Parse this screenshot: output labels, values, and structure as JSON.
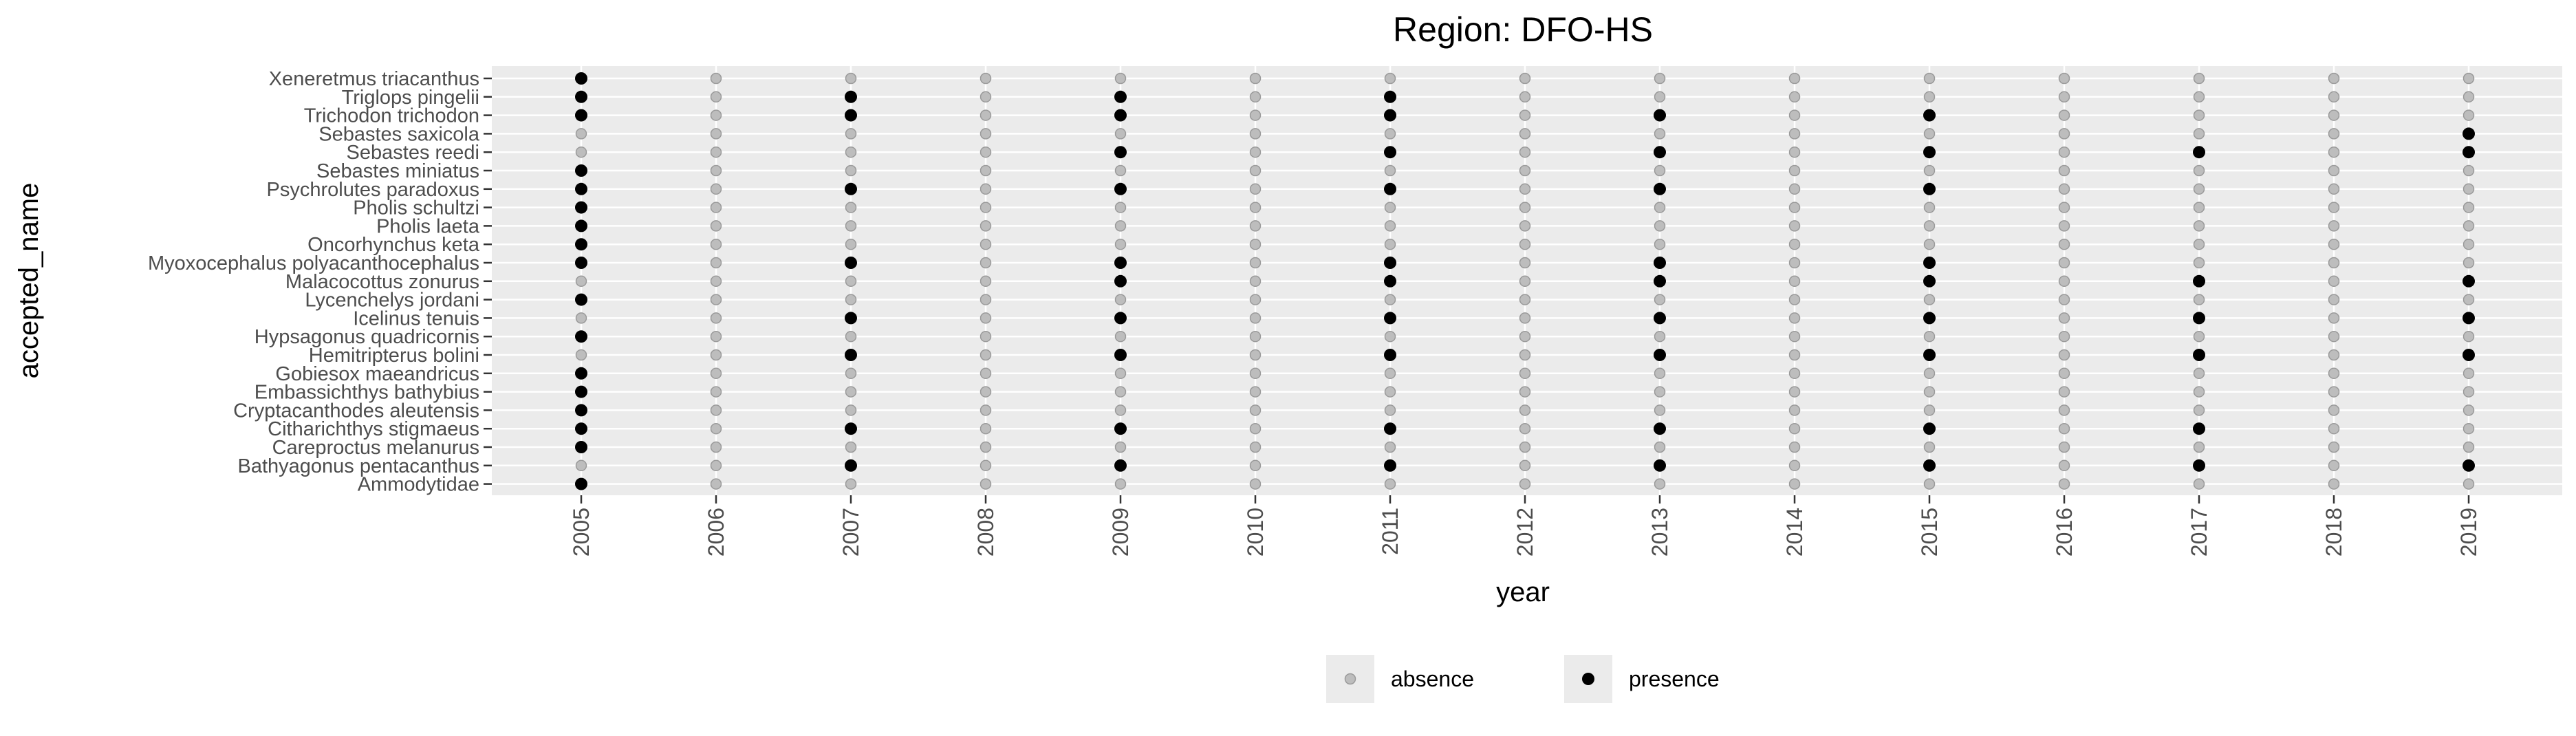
{
  "chart_data": {
    "type": "scatter",
    "title": "Region: DFO-HS",
    "xlabel": "year",
    "ylabel": "accepted_name",
    "x": [
      "2005",
      "2006",
      "2007",
      "2008",
      "2009",
      "2010",
      "2011",
      "2012",
      "2013",
      "2014",
      "2015",
      "2016",
      "2017",
      "2018",
      "2019"
    ],
    "categories": [
      "Xeneretmus triacanthus",
      "Triglops pingelii",
      "Trichodon trichodon",
      "Sebastes saxicola",
      "Sebastes reedi",
      "Sebastes miniatus",
      "Psychrolutes paradoxus",
      "Pholis schultzi",
      "Pholis laeta",
      "Oncorhynchus keta",
      "Myoxocephalus polyacanthocephalus",
      "Malacocottus zonurus",
      "Lycenchelys jordani",
      "Icelinus tenuis",
      "Hypsagonus quadricornis",
      "Hemitripterus bolini",
      "Gobiesox maeandricus",
      "Embassichthys bathybius",
      "Cryptacanthodes aleutensis",
      "Citharichthys stigmaeus",
      "Careproctus melanurus",
      "Bathyagonus pentacanthus",
      "Ammodytidae"
    ],
    "presence": [
      "100000000000000",
      "101010100000000",
      "101010101010000",
      "000000000000001",
      "000010101010101",
      "100000000000000",
      "101010101010000",
      "100000000000000",
      "100000000000000",
      "100000000000000",
      "101010101010000",
      "000010101010101",
      "100000000000000",
      "001010101010101",
      "100000000000000",
      "001010101010101",
      "100000000000000",
      "100000000000000",
      "100000000000000",
      "101010101010100",
      "100000000000000",
      "001010101010101",
      "100000000000000"
    ],
    "legend": {
      "position": "bottom",
      "items": [
        {
          "label": "absence",
          "color": "#bdbdbd"
        },
        {
          "label": "presence",
          "color": "#000000"
        }
      ]
    },
    "colors": {
      "panel": "#ebebeb",
      "grid": "#ffffff",
      "absence": "#bdbdbd",
      "absence_stroke": "#9a9a9a",
      "presence": "#000000"
    },
    "grid": true
  }
}
